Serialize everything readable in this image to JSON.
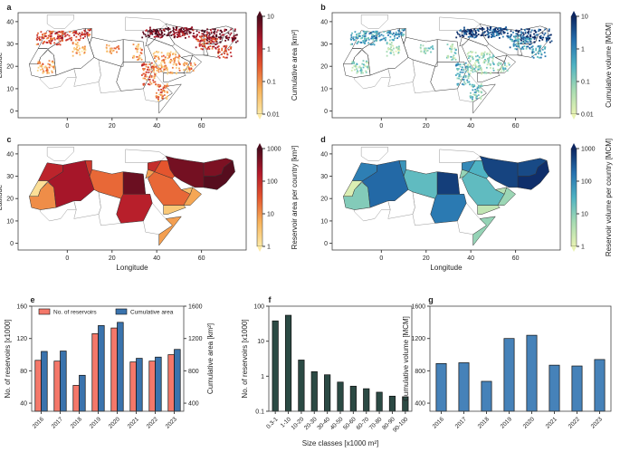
{
  "maps": [
    {
      "id": "a",
      "label": "a",
      "ylabel": "Latitude",
      "xlabel": "",
      "colorbar_label": "Cumulative area [km²]",
      "colorbar_ticks": [
        "10",
        "1",
        "0.1",
        "0.01"
      ],
      "palette": [
        "#fdeaa6",
        "#f7b25a",
        "#e4552e",
        "#b2182b",
        "#4a0b1c"
      ],
      "type": "points"
    },
    {
      "id": "b",
      "label": "b",
      "ylabel": "",
      "xlabel": "",
      "colorbar_label": "Cumulative volume [MCM]",
      "colorbar_ticks": [
        "10",
        "1",
        "0.1",
        "0.01"
      ],
      "palette": [
        "#e8f3b3",
        "#a6dbb3",
        "#4fb3c3",
        "#2672b0",
        "#0c2560"
      ],
      "type": "points"
    },
    {
      "id": "c",
      "label": "c",
      "ylabel": "Latitude",
      "xlabel": "Longitude",
      "colorbar_label": "Reservoir area per country [km²]",
      "colorbar_ticks": [
        "1000",
        "100",
        "10",
        "1"
      ],
      "palette": [
        "#fdeaa6",
        "#f7b25a",
        "#e4552e",
        "#b2182b",
        "#4a0b1c"
      ],
      "type": "countries"
    },
    {
      "id": "d",
      "label": "d",
      "ylabel": "",
      "xlabel": "Longitude",
      "colorbar_label": "Reservoir volume per country [MCM]",
      "colorbar_ticks": [
        "1000",
        "100",
        "10",
        "1"
      ],
      "palette": [
        "#e8f3b3",
        "#a6dbb3",
        "#4fb3c3",
        "#2672b0",
        "#0c2560"
      ],
      "type": "countries"
    }
  ],
  "map_axes": {
    "x_ticks": [
      "0",
      "20",
      "40",
      "60"
    ],
    "y_ticks": [
      "0",
      "10",
      "20",
      "30",
      "40"
    ]
  },
  "chart_data": [
    {
      "id": "e",
      "label": "e",
      "type": "bar",
      "categories": [
        "2016",
        "2017",
        "2018",
        "2019",
        "2020",
        "2021",
        "2022",
        "2023"
      ],
      "series": [
        {
          "name": "No. of reservoirs",
          "axis": "left",
          "color": "#f4786a",
          "values": [
            93,
            92,
            62,
            126,
            133,
            91,
            92,
            100
          ]
        },
        {
          "name": "Cumulative area",
          "axis": "right",
          "color": "#3a73ad",
          "values": [
            1040,
            1045,
            745,
            1360,
            1400,
            955,
            970,
            1065
          ]
        }
      ],
      "ylabel": "No. of reservoirs [x1000]",
      "ylim": [
        30,
        160
      ],
      "yticks": [
        "40",
        "80",
        "120",
        "160"
      ],
      "y2label": "Cumulative area [km²]",
      "y2lim": [
        300,
        1600
      ],
      "y2ticks": [
        "400",
        "800",
        "1200",
        "1600"
      ],
      "legend": "top"
    },
    {
      "id": "f",
      "label": "f",
      "type": "bar",
      "categories": [
        "0.3-1",
        "1-10",
        "10-20",
        "20-30",
        "30-40",
        "40-50",
        "50-60",
        "60-70",
        "70-80",
        "80-90",
        "90-100"
      ],
      "values": [
        38,
        55,
        2.9,
        1.35,
        1.1,
        0.68,
        0.52,
        0.44,
        0.35,
        0.27,
        0.26
      ],
      "color": "#2b4a44",
      "ylabel": "No. of reservoirs [x1000]",
      "xlabel": "Size classes [x1000 m²]",
      "yscale": "log",
      "ylim": [
        0.1,
        100
      ],
      "yticks": [
        "100",
        "10",
        "1",
        "0.1"
      ]
    },
    {
      "id": "g",
      "label": "g",
      "type": "bar",
      "categories": [
        "2016",
        "2017",
        "2018",
        "2019",
        "2020",
        "2021",
        "2022",
        "2023"
      ],
      "values": [
        890,
        900,
        670,
        1200,
        1240,
        870,
        860,
        940
      ],
      "color": "#4682b9",
      "ylabel": "Cumulative volume [MCM]",
      "ylim": [
        300,
        1600
      ],
      "yticks": [
        "400",
        "800",
        "1200",
        "1600"
      ]
    }
  ]
}
